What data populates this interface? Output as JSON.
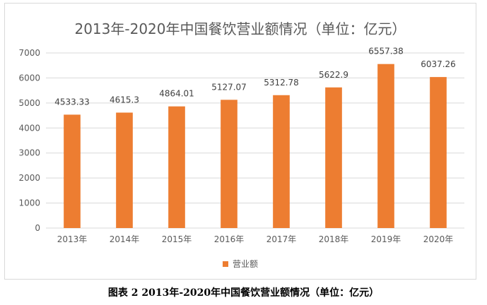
{
  "chart_data": {
    "type": "bar",
    "title": "2013年-2020年中国餐饮营业额情况（单位：亿元）",
    "categories": [
      "2013年",
      "2014年",
      "2015年",
      "2016年",
      "2017年",
      "2018年",
      "2019年",
      "2020年"
    ],
    "series": [
      {
        "name": "营业额",
        "values": [
          4533.33,
          4615.3,
          4864.01,
          5127.07,
          5312.78,
          5622.9,
          6557.38,
          6037.26
        ],
        "labels": [
          "4533.33",
          "4615.3",
          "4864.01",
          "5127.07",
          "5312.78",
          "5622.9",
          "6557.38",
          "6037.26"
        ],
        "color": "#ED7D31"
      }
    ],
    "ylim": [
      0,
      7000
    ],
    "yticks": [
      0,
      1000,
      2000,
      3000,
      4000,
      5000,
      6000,
      7000
    ],
    "grid": true,
    "legend_position": "bottom",
    "xlabel": "",
    "ylabel": ""
  },
  "caption": "图表 2 2013年-2020年中国餐饮营业额情况（单位：亿元）"
}
